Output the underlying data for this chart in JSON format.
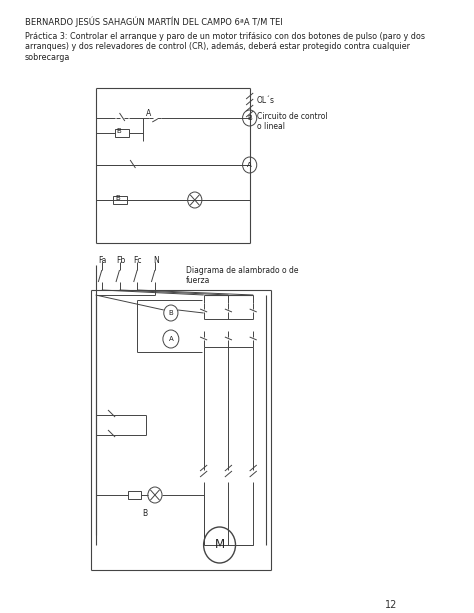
{
  "title_line": "BERNARDO JESÚS SAHAGÚN MARTÍN DEL CAMPO 6ªA T/M TEI",
  "description": "Práctica 3: Controlar el arranque y paro de un motor trifásico con dos botones de pulso (paro y dos\narranques) y dos relevadores de control (CR), además, deberá estar protegido contra cualquier\nsobrecarga",
  "label_circuito": "Circuito de control\no lineal",
  "label_diagrama": "Diagrama de alambrado o de\nfuerza",
  "label_OLs": "OL´s",
  "label_Fa": "Fa",
  "label_Fb": "Fb",
  "label_Fc": "Fc",
  "label_N": "N",
  "label_A_top": "A",
  "label_B_top": "B",
  "label_B_bot": "B",
  "label_M": "M",
  "page_number": "12",
  "bg_color": "#ffffff",
  "line_color": "#444444",
  "text_color": "#222222",
  "font_size_title": 6.0,
  "font_size_desc": 5.8,
  "font_size_label": 5.5
}
